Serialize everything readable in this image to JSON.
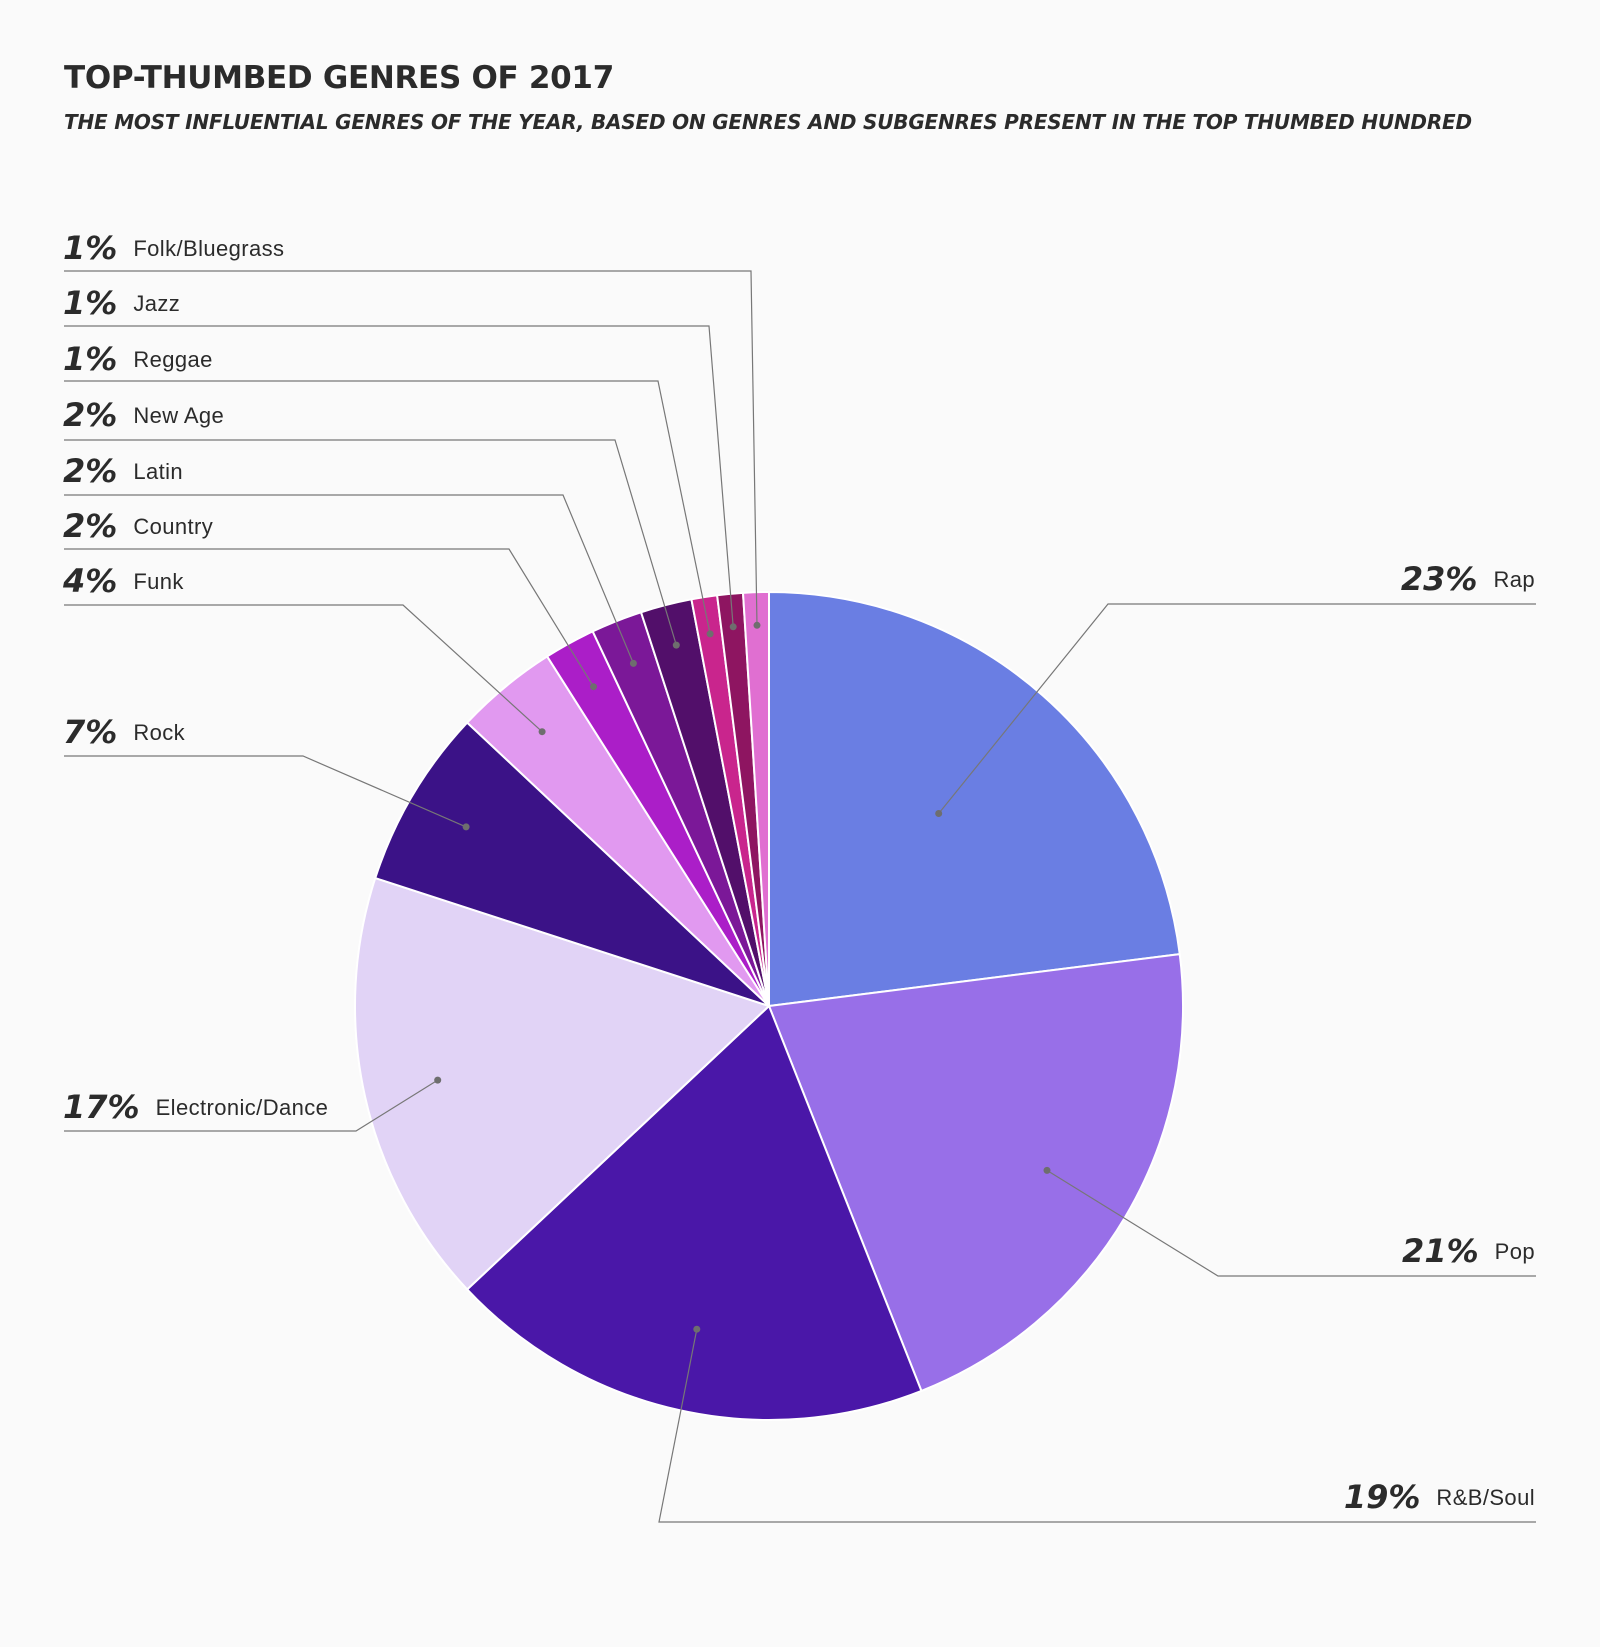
{
  "title": "TOP-THUMBED GENRES OF 2017",
  "subtitle": "THE MOST INFLUENTIAL GENRES OF THE YEAR, BASED ON GENRES AND SUBGENRES PRESENT IN THE TOP THUMBED HUNDRED",
  "chart_data": {
    "type": "pie",
    "title": "TOP-THUMBED GENRES OF 2017",
    "start_angle": "12 o'clock",
    "direction": "clockwise",
    "slices": [
      {
        "name": "Rap",
        "value": 23,
        "label": "23%",
        "color": "#6a7ee3"
      },
      {
        "name": "Pop",
        "value": 21,
        "label": "21%",
        "color": "#986fe8"
      },
      {
        "name": "R&B/Soul",
        "value": 19,
        "label": "19%",
        "color": "#4a17a8"
      },
      {
        "name": "Electronic/Dance",
        "value": 17,
        "label": "17%",
        "color": "#e1d3f6"
      },
      {
        "name": "Rock",
        "value": 7,
        "label": "7%",
        "color": "#3b1287"
      },
      {
        "name": "Funk",
        "value": 4,
        "label": "4%",
        "color": "#e199f0"
      },
      {
        "name": "Country",
        "value": 2,
        "label": "2%",
        "color": "#ab1ec8"
      },
      {
        "name": "Latin",
        "value": 2,
        "label": "2%",
        "color": "#7b1898"
      },
      {
        "name": "New Age",
        "value": 2,
        "label": "2%",
        "color": "#520f6a"
      },
      {
        "name": "Reggae",
        "value": 1,
        "label": "1%",
        "color": "#c9258d"
      },
      {
        "name": "Jazz",
        "value": 1,
        "label": "1%",
        "color": "#8e1561"
      },
      {
        "name": "Folk/Bluegrass",
        "value": 1,
        "label": "1%",
        "color": "#e06fd1"
      }
    ]
  }
}
